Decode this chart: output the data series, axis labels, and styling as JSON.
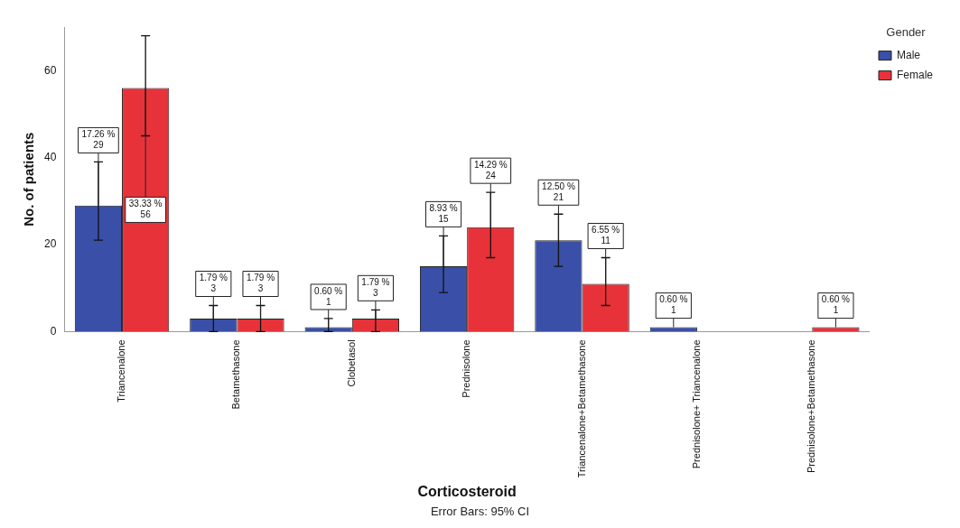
{
  "chart_data": {
    "type": "bar",
    "xlabel": "Corticosteroid",
    "ylabel": "No. of patients",
    "legend_title": "Gender",
    "legend": "top right",
    "grid": false,
    "categories": [
      "Triancenalone",
      "Betamethasone",
      "Clobetasol",
      "Prednisolone",
      "Triancenalone+Betamethasone",
      "Prednisolone+ Triancenalone",
      "Prednisolone+Betamethasone"
    ],
    "ylim": [
      0,
      70
    ],
    "yticks": [
      0,
      20,
      40,
      60
    ],
    "series": [
      {
        "name": "Male",
        "color": "#3a4fa8",
        "values": [
          29,
          3,
          1,
          15,
          21,
          1,
          null
        ],
        "errors": [
          [
            21,
            39
          ],
          [
            0,
            6
          ],
          [
            0,
            3
          ],
          [
            9,
            22
          ],
          [
            15,
            27
          ],
          null,
          null
        ],
        "value_labels": [
          "17.26 %\n29",
          "1.79 %\n3",
          "0.60 %\n1",
          "8.93 %\n15",
          "12.50 %\n21",
          "0.60 %\n1",
          null
        ]
      },
      {
        "name": "Female",
        "color": "#e8323a",
        "values": [
          56,
          3,
          3,
          24,
          11,
          null,
          1
        ],
        "errors": [
          [
            45,
            68
          ],
          [
            0,
            6
          ],
          [
            0,
            5
          ],
          [
            17,
            32
          ],
          [
            6,
            17
          ],
          null,
          null
        ],
        "value_labels": [
          "33.33 %\n56",
          "1.79 %\n3",
          "1.79 %\n3",
          "14.29 %\n24",
          "6.55 %\n11",
          null,
          "0.60 %\n1"
        ]
      }
    ],
    "annotations": [
      "Error Bars: 95% CI"
    ]
  }
}
